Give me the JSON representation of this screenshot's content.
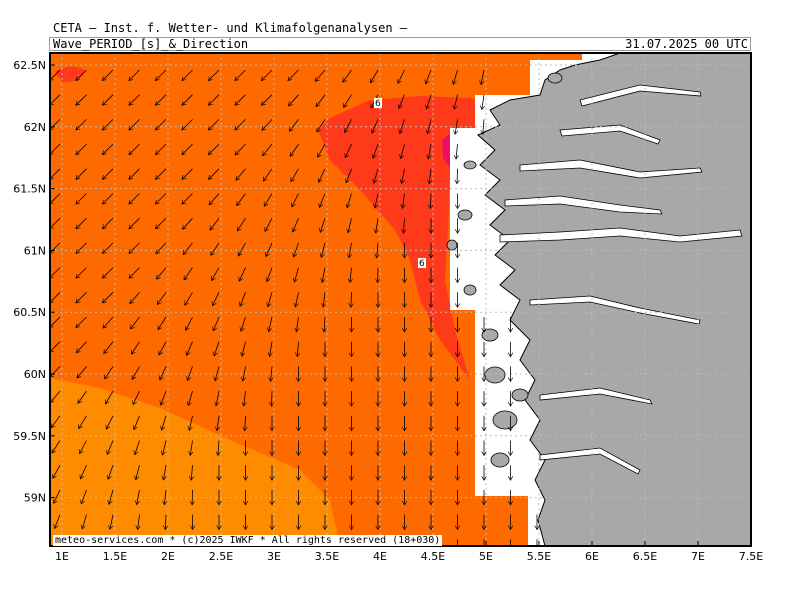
{
  "header": {
    "title": "CETA — Inst. f. Wetter- und Klimafolgenanalysen —",
    "subtitle": "Wave_PERIOD_[s]_&_Direction",
    "timestamp": "31.07.2025 00 UTC"
  },
  "footer": {
    "copyright": "meteo-services.com * (c)2025 IWKF * All rights reserved (18+030)"
  },
  "map": {
    "lon_labels": [
      "1E",
      "1.5E",
      "2E",
      "2.5E",
      "3E",
      "3.5E",
      "4E",
      "4.5E",
      "5E",
      "5.5E",
      "6E",
      "6.5E",
      "7E",
      "7.5E"
    ],
    "lat_labels": [
      "62.5N",
      "62N",
      "61.5N",
      "61N",
      "60.5N",
      "60N",
      "59.5N",
      "59N"
    ],
    "contour_labels": [
      "6",
      "6"
    ],
    "colors": {
      "period_low": "#ff8c00",
      "period_mid": "#ff6a00",
      "period_high": "#ff3a1a",
      "period_peak": "#ee1060",
      "land": "#a8a8a8",
      "no_data": "#ffffff",
      "grid": "#bbbbbb"
    }
  }
}
